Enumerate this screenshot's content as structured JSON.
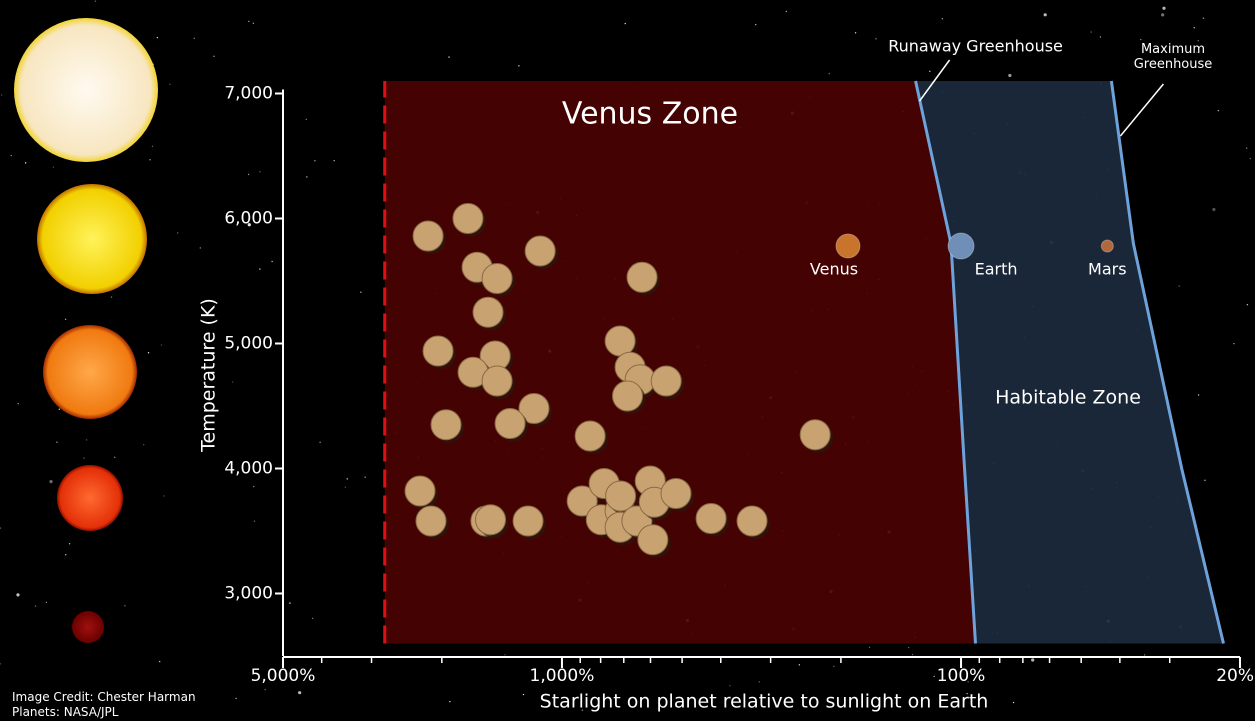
{
  "chart_data": {
    "type": "scatter",
    "x_label": "Starlight on planet relative to sunlight on Earth",
    "y_label": "Temperature (K)",
    "log_x": true,
    "xlim": [
      5000,
      20
    ],
    "ylim": [
      2500,
      7300
    ],
    "xticks": [
      {
        "value": 5000,
        "label": "5,000%"
      },
      {
        "value": 1000,
        "label": "1,000%"
      },
      {
        "value": 100,
        "label": "100%"
      },
      {
        "value": 20,
        "label": "20%"
      }
    ],
    "xminorticks": [
      4000,
      3000,
      2000,
      900,
      800,
      700,
      600,
      500,
      400,
      300,
      200,
      90,
      80,
      70,
      60,
      50,
      40,
      30
    ],
    "yticks": [
      {
        "value": 3000,
        "label": "3,000"
      },
      {
        "value": 4000,
        "label": "4,000"
      },
      {
        "value": 5000,
        "label": "5,000"
      },
      {
        "value": 6000,
        "label": "6,000"
      },
      {
        "value": 7000,
        "label": "7,000"
      }
    ],
    "points": {
      "color": "#c9a272",
      "x": [
        2165,
        1720,
        1632,
        1454,
        1134,
        630,
        1532,
        2044,
        1470,
        1670,
        1454,
        1175,
        1952,
        1349,
        715,
        675,
        637,
        548,
        685,
        850,
        232,
        2268,
        2129,
        1551,
        1510,
        1216,
        890,
        784,
        797,
        715,
        713,
        715,
        649,
        601,
        587,
        518,
        592,
        423,
        334
      ],
      "y": [
        5860,
        6000,
        5610,
        5520,
        5740,
        5530,
        5250,
        4940,
        4900,
        4770,
        4700,
        4480,
        4350,
        4360,
        5020,
        4810,
        4710,
        4700,
        4580,
        4260,
        4270,
        3820,
        3580,
        3580,
        3590,
        3580,
        3740,
        3880,
        3590,
        3660,
        3780,
        3530,
        3580,
        3900,
        3730,
        3800,
        3430,
        3600,
        3580
      ]
    },
    "planets": [
      {
        "name": "Venus",
        "x": 192,
        "y": 5780,
        "color": "#c8742c"
      },
      {
        "name": "Earth",
        "x": 100,
        "y": 5780,
        "color": "#6f8fb8"
      },
      {
        "name": "Mars",
        "x": 43,
        "y": 5780,
        "color": "#b0683c"
      }
    ],
    "venus_zone": {
      "label": "Venus Zone",
      "x_edge": 2780,
      "y_range": [
        2600,
        7100
      ],
      "color": "#4a0202",
      "edge_color": "#e01010"
    },
    "habitable_zone": {
      "label": "Habitable Zone",
      "color": "#1c2a3c",
      "edge_color": "#6ea2da"
    },
    "runaway_greenhouse": {
      "label": "Runaway Greenhouse",
      "x": [
        130,
        106,
        98,
        92
      ],
      "y": [
        7100,
        5800,
        4000,
        2600
      ]
    },
    "maximum_greenhouse": {
      "label": "Maximum Greenhouse",
      "x": [
        42,
        37,
        28,
        22
      ],
      "y": [
        7100,
        5800,
        4000,
        2600
      ]
    },
    "credits": [
      "Image Credit: Chester Harman",
      "Planets: NASA/JPL"
    ]
  }
}
